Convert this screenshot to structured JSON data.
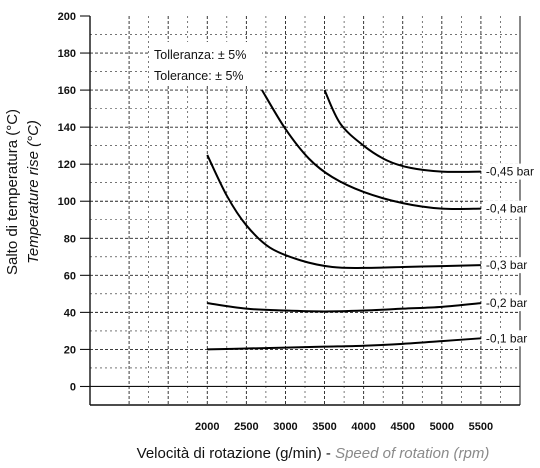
{
  "chart_data": {
    "type": "line",
    "ylabel": "Salto di temperatura (°C)",
    "ylabel_en": "Temperature rise (°C)",
    "xlabel_prefix": "Velocità di rotazione (g/min) - ",
    "xlabel_en": "Speed of rotation (rpm)",
    "xlim": [
      500,
      6000
    ],
    "ylim": [
      -10,
      200
    ],
    "xticks": [
      2000,
      2500,
      3000,
      3500,
      4000,
      4500,
      5000,
      5500
    ],
    "xtick_labels": [
      "2000",
      "2500",
      "3000",
      "3500",
      "4000",
      "4500",
      "5000",
      "5500"
    ],
    "yticks": [
      0,
      20,
      40,
      60,
      80,
      100,
      120,
      140,
      160,
      180,
      200
    ],
    "ytick_labels": [
      "0",
      "20",
      "40",
      "60",
      "80",
      "100",
      "120",
      "140",
      "160",
      "180",
      "200"
    ],
    "grid": true,
    "annotations": [
      "Tolleranza: ± 5%",
      "Tolerance: ± 5%"
    ],
    "series": [
      {
        "name": "-0,45 bar",
        "x": [
          3500,
          3700,
          4000,
          4300,
          4600,
          5000,
          5500
        ],
        "y": [
          160,
          142,
          130,
          122,
          118,
          116,
          116
        ]
      },
      {
        "name": "-0,4 bar",
        "x": [
          2700,
          3000,
          3300,
          3600,
          4000,
          4500,
          5000,
          5500
        ],
        "y": [
          160,
          139,
          123,
          113,
          105,
          99,
          96,
          96
        ]
      },
      {
        "name": "-0,3 bar",
        "x": [
          2000,
          2250,
          2500,
          2800,
          3200,
          3600,
          4000,
          4500,
          5000,
          5500
        ],
        "y": [
          125,
          103,
          87,
          75,
          68,
          64.5,
          64,
          64.5,
          65,
          65.5
        ]
      },
      {
        "name": "-0,2 bar",
        "x": [
          2000,
          2500,
          3000,
          3500,
          4000,
          4500,
          5000,
          5500
        ],
        "y": [
          45,
          42,
          41,
          40.5,
          41,
          42,
          43,
          45
        ]
      },
      {
        "name": "-0,1 bar",
        "x": [
          2000,
          2500,
          3000,
          3500,
          4000,
          4500,
          5000,
          5500
        ],
        "y": [
          20,
          20.5,
          21,
          21.5,
          22,
          23,
          24.5,
          26
        ]
      }
    ]
  }
}
